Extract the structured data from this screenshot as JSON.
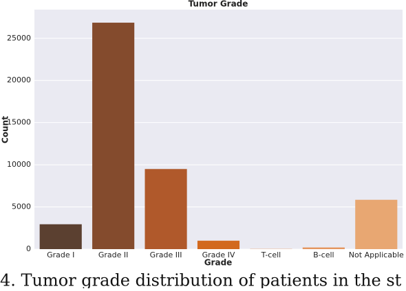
{
  "chart_data": {
    "type": "bar",
    "title": "Tumor Grade",
    "x_label": "Grade",
    "y_label": "Count",
    "categories": [
      "Grade I",
      "Grade II",
      "Grade III",
      "Grade IV",
      "T-cell",
      "B-cell",
      "Not Applicable"
    ],
    "values": [
      2950,
      26850,
      9500,
      1000,
      20,
      200,
      5850
    ],
    "colors": [
      "#5b4030",
      "#844b2d",
      "#b0592b",
      "#d2691e",
      "#e07a35",
      "#e59660",
      "#e8a772"
    ],
    "ylim": [
      0,
      28400
    ],
    "yticks": [
      0,
      5000,
      10000,
      15000,
      20000,
      25000
    ],
    "grid": true,
    "caption": "4. Tumor grade distribution of patients in the st"
  }
}
